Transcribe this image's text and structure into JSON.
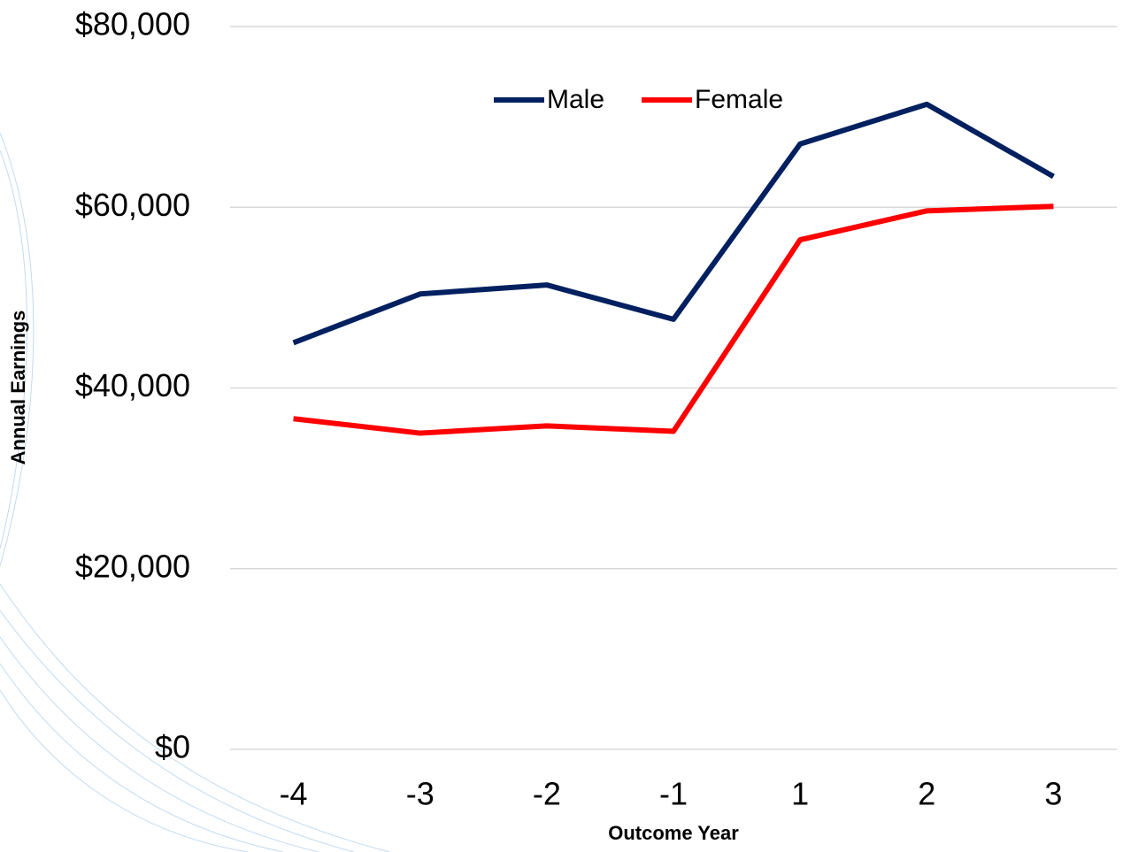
{
  "chart_data": {
    "type": "line",
    "categories": [
      "-4",
      "-3",
      "-2",
      "-1",
      "1",
      "2",
      "3"
    ],
    "series": [
      {
        "name": "Male",
        "color": "#002060",
        "values": [
          45000,
          50400,
          51400,
          47600,
          67000,
          71400,
          63400
        ]
      },
      {
        "name": "Female",
        "color": "#ff0000",
        "values": [
          36600,
          35000,
          35800,
          35200,
          56400,
          59600,
          60100
        ]
      }
    ],
    "ylim": [
      0,
      80000
    ],
    "yticks": [
      {
        "value": 0,
        "label": "$0"
      },
      {
        "value": 20000,
        "label": "$20,000"
      },
      {
        "value": 40000,
        "label": "$40,000"
      },
      {
        "value": 60000,
        "label": "$60,000"
      },
      {
        "value": 80000,
        "label": "$80,000"
      }
    ],
    "y_label": "Annual Earnings",
    "x_label": "Outcome Year",
    "grid": true,
    "legend": "top"
  }
}
